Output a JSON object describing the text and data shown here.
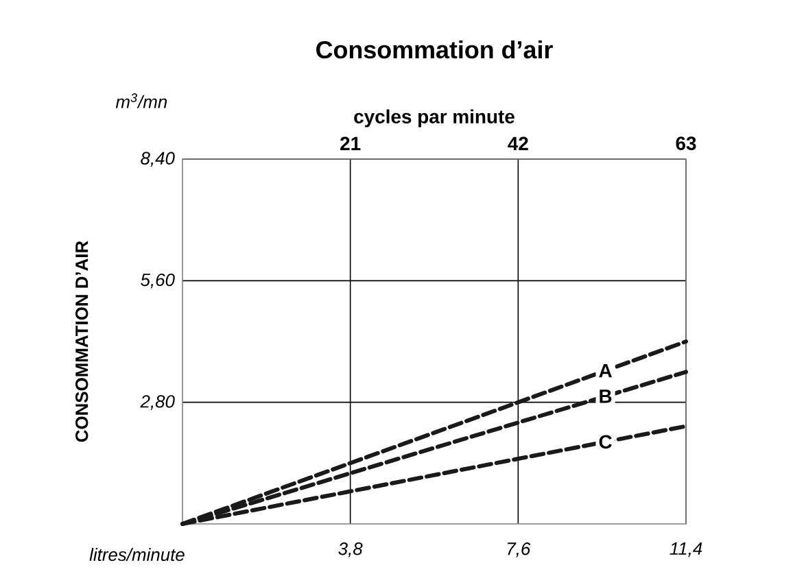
{
  "chart_data": {
    "type": "line",
    "title": "Consommation d’air",
    "xlabel": "litres/minute",
    "ylabel": "CONSOMMATION D’AIR",
    "x2label": "cycles par minute",
    "annotations": [
      "m$^{3}$/mn"
    ],
    "x": [
      0,
      11.4
    ],
    "series": [
      {
        "name": "A",
        "color": "#1a1a1a",
        "values": [
          0,
          4.2
        ]
      },
      {
        "name": "B",
        "color": "#1a1a1a",
        "values": [
          0,
          3.5
        ]
      },
      {
        "name": "C",
        "color": "#1a1a1a",
        "values": [
          0,
          2.25
        ]
      }
    ],
    "xlim": [
      0,
      11.4
    ],
    "xticks": [
      {
        "value": 3.8,
        "label": "3,8"
      },
      {
        "value": 7.6,
        "label": "7,6"
      },
      {
        "value": 11.4,
        "label": "11,4"
      }
    ],
    "ylim": [
      0,
      8.4
    ],
    "yticks": [
      {
        "value": 2.8,
        "label": "2,80"
      },
      {
        "value": 5.6,
        "label": "5,60"
      },
      {
        "value": 8.4,
        "label": "8,40"
      }
    ],
    "x2lim": [
      0,
      63
    ],
    "x2ticks": [
      21,
      42,
      63
    ],
    "grid": true,
    "line_style": "dashed",
    "marker": "none"
  }
}
